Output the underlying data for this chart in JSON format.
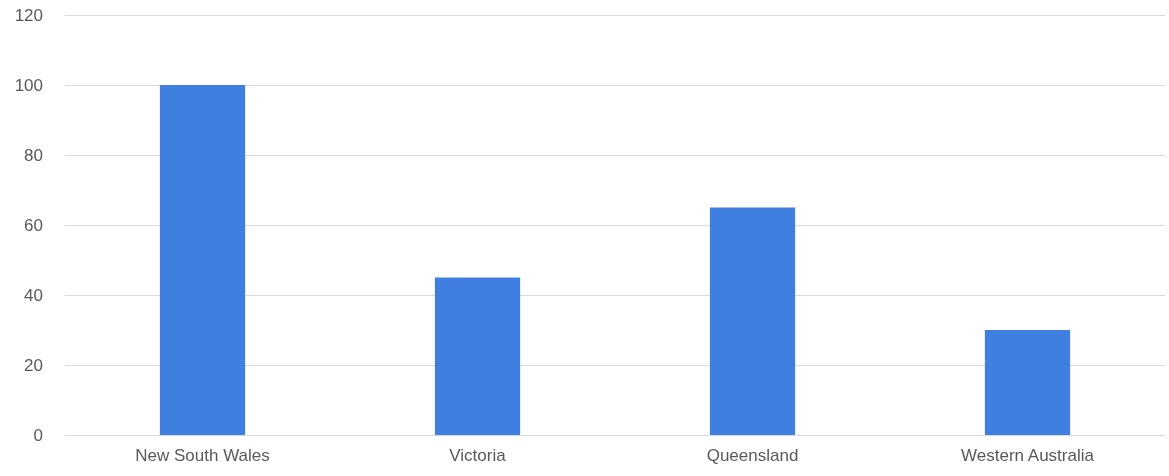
{
  "chart_data": {
    "type": "bar",
    "categories": [
      "New South Wales",
      "Victoria",
      "Queensland",
      "Western Australia"
    ],
    "values": [
      100,
      45,
      65,
      30
    ],
    "color": "#3f7fe0",
    "ylim": [
      0,
      120
    ],
    "yticks": [
      0,
      20,
      40,
      60,
      80,
      100,
      120
    ],
    "grid": "y"
  }
}
